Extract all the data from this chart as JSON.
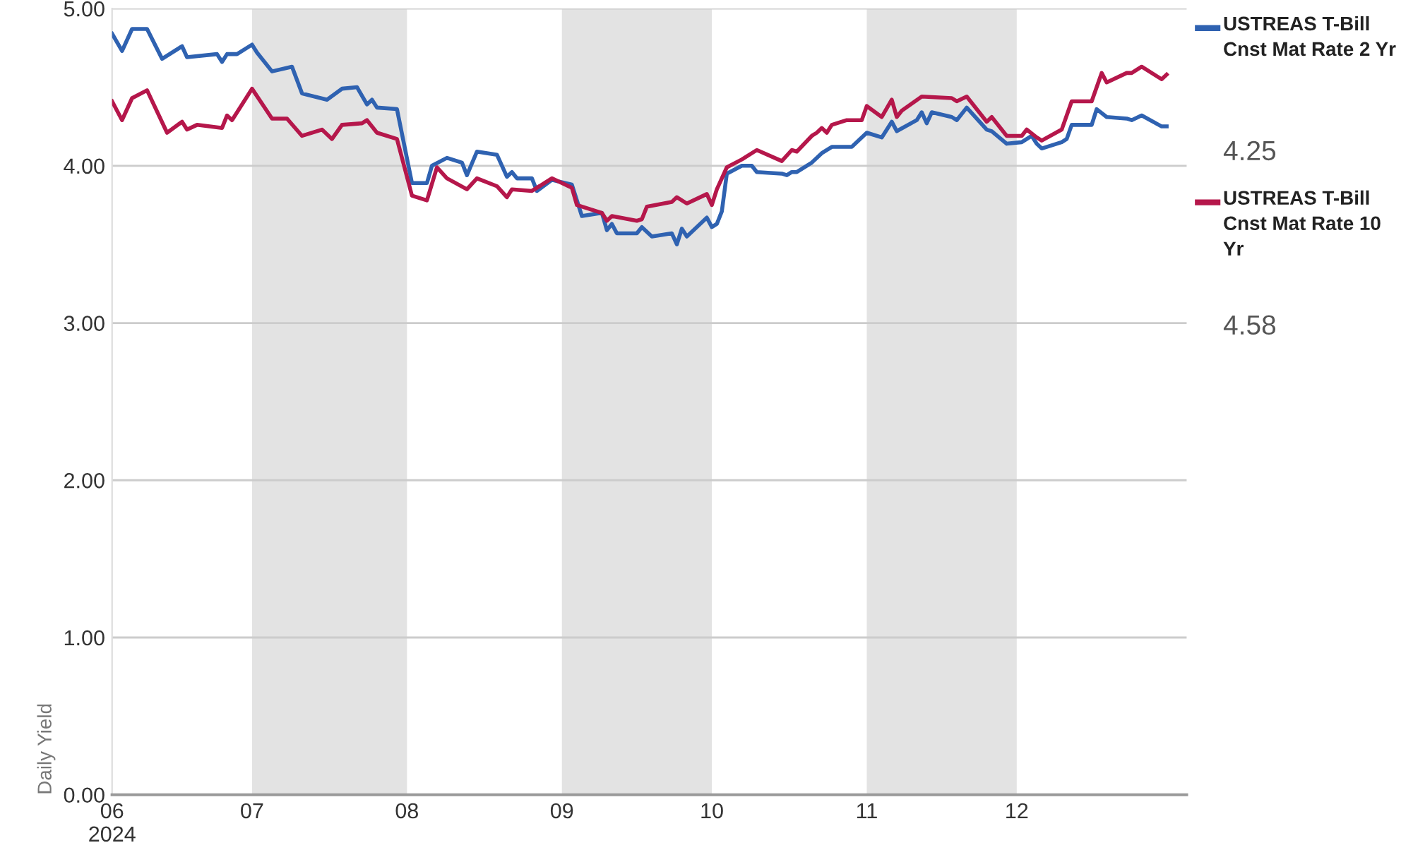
{
  "chart_data": {
    "type": "line",
    "ylabel": "Daily Yield",
    "xlim": [
      "2024-06-03",
      "2025-01-04"
    ],
    "xticks": [
      {
        "value": "2024-06-03",
        "label": "06\n2024"
      },
      {
        "value": "2024-07-01",
        "label": "07"
      },
      {
        "value": "2024-08-01",
        "label": "08"
      },
      {
        "value": "2024-09-01",
        "label": "09"
      },
      {
        "value": "2024-10-01",
        "label": "10"
      },
      {
        "value": "2024-11-01",
        "label": "11"
      },
      {
        "value": "2024-12-01",
        "label": "12"
      }
    ],
    "ylim": [
      0,
      5
    ],
    "yticks": [
      {
        "value": 0,
        "label": "0.00"
      },
      {
        "value": 1,
        "label": "1.00"
      },
      {
        "value": 2,
        "label": "2.00"
      },
      {
        "value": 3,
        "label": "3.00"
      },
      {
        "value": 4,
        "label": "4.00"
      },
      {
        "value": 5,
        "label": "5.00"
      }
    ],
    "grid": "y",
    "legend": "right",
    "marker": "none",
    "line_style": "solid",
    "bands": [
      {
        "axis": "x",
        "from": "2024-07-01",
        "to": "2024-08-01",
        "color": "#e3e3e3"
      },
      {
        "axis": "x",
        "from": "2024-09-01",
        "to": "2024-10-01",
        "color": "#e3e3e3"
      },
      {
        "axis": "x",
        "from": "2024-11-01",
        "to": "2024-12-01",
        "color": "#e3e3e3"
      }
    ],
    "series": [
      {
        "name": "USTREAS T-Bill Cnst Mat Rate 2 Yr",
        "color": "#2f62b1",
        "x": [
          "2024-06-03",
          "2024-06-05",
          "2024-06-07",
          "2024-06-10",
          "2024-06-13",
          "2024-06-17",
          "2024-06-18",
          "2024-06-24",
          "2024-06-25",
          "2024-06-26",
          "2024-06-28",
          "2024-07-01",
          "2024-07-02",
          "2024-07-05",
          "2024-07-09",
          "2024-07-11",
          "2024-07-16",
          "2024-07-19",
          "2024-07-22",
          "2024-07-24",
          "2024-07-25",
          "2024-07-26",
          "2024-07-30",
          "2024-08-02",
          "2024-08-05",
          "2024-08-06",
          "2024-08-09",
          "2024-08-12",
          "2024-08-13",
          "2024-08-15",
          "2024-08-19",
          "2024-08-21",
          "2024-08-22",
          "2024-08-23",
          "2024-08-26",
          "2024-08-27",
          "2024-08-30",
          "2024-09-03",
          "2024-09-05",
          "2024-09-09",
          "2024-09-10",
          "2024-09-11",
          "2024-09-12",
          "2024-09-16",
          "2024-09-17",
          "2024-09-19",
          "2024-09-23",
          "2024-09-24",
          "2024-09-25",
          "2024-09-26",
          "2024-09-30",
          "2024-10-01",
          "2024-10-02",
          "2024-10-03",
          "2024-10-04",
          "2024-10-07",
          "2024-10-09",
          "2024-10-10",
          "2024-10-15",
          "2024-10-16",
          "2024-10-17",
          "2024-10-18",
          "2024-10-21",
          "2024-10-23",
          "2024-10-25",
          "2024-10-29",
          "2024-11-01",
          "2024-11-04",
          "2024-11-06",
          "2024-11-07",
          "2024-11-11",
          "2024-11-12",
          "2024-11-13",
          "2024-11-14",
          "2024-11-18",
          "2024-11-19",
          "2024-11-21",
          "2024-11-25",
          "2024-11-26",
          "2024-11-29",
          "2024-12-02",
          "2024-12-04",
          "2024-12-05",
          "2024-12-06",
          "2024-12-10",
          "2024-12-11",
          "2024-12-12",
          "2024-12-16",
          "2024-12-17",
          "2024-12-19",
          "2024-12-23",
          "2024-12-24",
          "2024-12-26",
          "2024-12-30",
          "2024-12-31"
        ],
        "values": [
          4.84,
          4.73,
          4.87,
          4.87,
          4.68,
          4.76,
          4.69,
          4.71,
          4.66,
          4.71,
          4.71,
          4.77,
          4.72,
          4.6,
          4.63,
          4.46,
          4.42,
          4.49,
          4.5,
          4.39,
          4.42,
          4.37,
          4.36,
          3.89,
          3.89,
          4.0,
          4.05,
          4.02,
          3.94,
          4.09,
          4.07,
          3.93,
          3.96,
          3.92,
          3.92,
          3.84,
          3.91,
          3.88,
          3.68,
          3.7,
          3.59,
          3.63,
          3.57,
          3.57,
          3.61,
          3.55,
          3.57,
          3.5,
          3.6,
          3.55,
          3.67,
          3.61,
          3.63,
          3.71,
          3.95,
          4.0,
          4.0,
          3.96,
          3.95,
          3.94,
          3.96,
          3.96,
          4.02,
          4.08,
          4.12,
          4.12,
          4.21,
          4.18,
          4.28,
          4.22,
          4.29,
          4.34,
          4.27,
          4.34,
          4.31,
          4.29,
          4.37,
          4.23,
          4.22,
          4.14,
          4.15,
          4.19,
          4.14,
          4.11,
          4.15,
          4.17,
          4.26,
          4.26,
          4.36,
          4.31,
          4.3,
          4.29,
          4.32,
          4.25,
          4.25
        ]
      },
      {
        "name": "USTREAS T-Bill Cnst Mat Rate 10 Yr",
        "color": "#b5174b",
        "x": [
          "2024-06-03",
          "2024-06-05",
          "2024-06-07",
          "2024-06-10",
          "2024-06-14",
          "2024-06-17",
          "2024-06-18",
          "2024-06-20",
          "2024-06-25",
          "2024-06-26",
          "2024-06-27",
          "2024-07-01",
          "2024-07-05",
          "2024-07-08",
          "2024-07-11",
          "2024-07-15",
          "2024-07-17",
          "2024-07-19",
          "2024-07-23",
          "2024-07-24",
          "2024-07-26",
          "2024-07-30",
          "2024-07-31",
          "2024-08-02",
          "2024-08-05",
          "2024-08-07",
          "2024-08-09",
          "2024-08-13",
          "2024-08-15",
          "2024-08-19",
          "2024-08-21",
          "2024-08-22",
          "2024-08-26",
          "2024-08-30",
          "2024-09-03",
          "2024-09-04",
          "2024-09-09",
          "2024-09-10",
          "2024-09-11",
          "2024-09-16",
          "2024-09-17",
          "2024-09-18",
          "2024-09-23",
          "2024-09-24",
          "2024-09-26",
          "2024-09-30",
          "2024-10-01",
          "2024-10-02",
          "2024-10-04",
          "2024-10-07",
          "2024-10-10",
          "2024-10-15",
          "2024-10-17",
          "2024-10-18",
          "2024-10-21",
          "2024-10-22",
          "2024-10-23",
          "2024-10-24",
          "2024-10-25",
          "2024-10-28",
          "2024-10-31",
          "2024-11-01",
          "2024-11-04",
          "2024-11-06",
          "2024-11-07",
          "2024-11-08",
          "2024-11-12",
          "2024-11-18",
          "2024-11-19",
          "2024-11-21",
          "2024-11-25",
          "2024-11-26",
          "2024-11-29",
          "2024-12-02",
          "2024-12-03",
          "2024-12-05",
          "2024-12-06",
          "2024-12-10",
          "2024-12-12",
          "2024-12-16",
          "2024-12-18",
          "2024-12-19",
          "2024-12-23",
          "2024-12-24",
          "2024-12-26",
          "2024-12-30",
          "2024-12-31"
        ],
        "values": [
          4.41,
          4.29,
          4.43,
          4.48,
          4.21,
          4.28,
          4.23,
          4.26,
          4.24,
          4.32,
          4.29,
          4.49,
          4.3,
          4.3,
          4.19,
          4.23,
          4.17,
          4.26,
          4.27,
          4.29,
          4.21,
          4.17,
          4.05,
          3.81,
          3.78,
          3.99,
          3.92,
          3.85,
          3.92,
          3.87,
          3.8,
          3.85,
          3.84,
          3.92,
          3.86,
          3.75,
          3.7,
          3.65,
          3.68,
          3.65,
          3.66,
          3.74,
          3.77,
          3.8,
          3.76,
          3.82,
          3.75,
          3.85,
          3.99,
          4.04,
          4.1,
          4.03,
          4.1,
          4.09,
          4.19,
          4.21,
          4.24,
          4.21,
          4.26,
          4.29,
          4.29,
          4.38,
          4.31,
          4.42,
          4.31,
          4.35,
          4.44,
          4.43,
          4.41,
          4.44,
          4.28,
          4.31,
          4.19,
          4.19,
          4.23,
          4.18,
          4.16,
          4.23,
          4.41,
          4.41,
          4.59,
          4.53,
          4.59,
          4.59,
          4.63,
          4.55,
          4.58
        ]
      }
    ],
    "annotations": [
      "4.25",
      "4.58"
    ]
  }
}
